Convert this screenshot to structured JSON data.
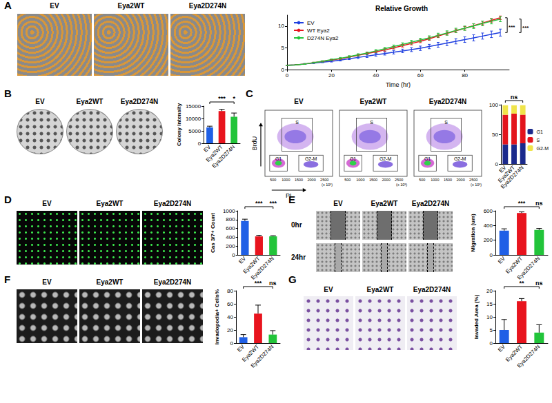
{
  "figure": {
    "image_labels": [
      "EV",
      "Eya2WT",
      "Eya2D274N"
    ],
    "scratch_times": [
      "0hr",
      "24hr"
    ],
    "flow": {
      "x_label": "PI",
      "y_label": "BrdU",
      "gates": [
        "S",
        "G1",
        "G2-M"
      ],
      "x_ticks": [
        "500",
        "1000",
        "1500",
        "2000",
        "2500"
      ],
      "x_unit": "(x 10³)"
    }
  },
  "chart_data": [
    {
      "panel": "A",
      "type": "line",
      "title": "Relative Growth",
      "x_label": "Time (hr)",
      "x": [
        0,
        4,
        8,
        12,
        16,
        20,
        24,
        28,
        32,
        36,
        40,
        44,
        48,
        52,
        56,
        60,
        64,
        68,
        72,
        76,
        80,
        84,
        88,
        92,
        96
      ],
      "xlim": [
        0,
        100
      ],
      "xticks": [
        0,
        20,
        40,
        60,
        80
      ],
      "ylim": [
        0,
        12.5
      ],
      "yticks": [
        0,
        5,
        10
      ],
      "grid": false,
      "legend": "top-left",
      "series": [
        {
          "name": "EV",
          "color": "#1f3fe0",
          "values": [
            1,
            1.1,
            1.3,
            1.5,
            1.7,
            1.9,
            2.2,
            2.5,
            2.8,
            3.1,
            3.4,
            3.7,
            4.0,
            4.3,
            4.6,
            4.9,
            5.3,
            5.7,
            6.1,
            6.5,
            6.9,
            7.3,
            7.7,
            8.1,
            8.5
          ],
          "errors": [
            0,
            0.05,
            0.1,
            0.1,
            0.1,
            0.15,
            0.2,
            0.2,
            0.25,
            0.3,
            0.3,
            0.35,
            0.4,
            0.4,
            0.45,
            0.5,
            0.5,
            0.55,
            0.6,
            0.6,
            0.65,
            0.7,
            0.7,
            0.75,
            0.8
          ]
        },
        {
          "name": "WT Eya2",
          "color": "#e8141e",
          "values": [
            1,
            1.1,
            1.3,
            1.6,
            1.9,
            2.2,
            2.5,
            2.9,
            3.3,
            3.7,
            4.1,
            4.5,
            5.0,
            5.5,
            6.0,
            6.5,
            7.1,
            7.7,
            8.3,
            8.9,
            9.5,
            10.1,
            10.7,
            11.3,
            11.9
          ],
          "errors": [
            0,
            0.05,
            0.05,
            0.1,
            0.1,
            0.1,
            0.15,
            0.15,
            0.2,
            0.2,
            0.2,
            0.25,
            0.25,
            0.3,
            0.3,
            0.3,
            0.35,
            0.35,
            0.35,
            0.4,
            0.4,
            0.4,
            0.4,
            0.4,
            0.4
          ]
        },
        {
          "name": "D274N Eya2",
          "color": "#22c43a",
          "values": [
            1,
            1.1,
            1.3,
            1.6,
            1.9,
            2.3,
            2.6,
            3.0,
            3.4,
            3.8,
            4.3,
            4.8,
            5.3,
            5.8,
            6.3,
            6.8,
            7.3,
            7.9,
            8.4,
            9.0,
            9.5,
            10.0,
            10.6,
            11.1,
            11.6
          ],
          "errors": [
            0,
            0.05,
            0.1,
            0.1,
            0.15,
            0.15,
            0.2,
            0.2,
            0.25,
            0.25,
            0.3,
            0.3,
            0.35,
            0.35,
            0.4,
            0.4,
            0.45,
            0.45,
            0.5,
            0.5,
            0.5,
            0.55,
            0.55,
            0.6,
            0.6
          ]
        }
      ],
      "annotations": [
        "***",
        "***"
      ]
    },
    {
      "panel": "B",
      "type": "bar",
      "y_label": "Colony Intensity",
      "categories": [
        "EV",
        "Eya2WT",
        "Eya2D274N"
      ],
      "values": [
        6400,
        13000,
        10700
      ],
      "errors": [
        500,
        700,
        1500
      ],
      "colors": [
        "#1f5fe6",
        "#e8141e",
        "#22c43a"
      ],
      "ylim": [
        0,
        15000
      ],
      "yticks": [
        0,
        5000,
        10000,
        15000
      ],
      "grid": false,
      "significance": [
        null,
        "***",
        "*"
      ]
    },
    {
      "panel": "C",
      "type": "bar",
      "stacked": true,
      "categories": [
        "EV",
        "Eya2WT",
        "Eya2D274N"
      ],
      "series": [
        {
          "name": "G1",
          "color": "#1b2a8c",
          "values": [
            33,
            33,
            35
          ]
        },
        {
          "name": "S",
          "color": "#e3141c",
          "values": [
            50,
            52,
            48
          ]
        },
        {
          "name": "G2-M",
          "color": "#f0e44a",
          "values": [
            16,
            14,
            16
          ]
        }
      ],
      "ylim": [
        0,
        100
      ],
      "yticks": [
        0,
        50,
        100
      ],
      "grid": false,
      "legend": "right",
      "annotations": [
        "ns"
      ]
    },
    {
      "panel": "D",
      "type": "bar",
      "y_label": "Cas 3/7+ Count",
      "categories": [
        "EV",
        "Eya2WT",
        "Eya2D274N"
      ],
      "values": [
        770,
        420,
        420
      ],
      "errors": [
        40,
        25,
        15
      ],
      "colors": [
        "#1f5fe6",
        "#e8141e",
        "#22c43a"
      ],
      "ylim": [
        0,
        1000
      ],
      "yticks": [
        0,
        200,
        400,
        600,
        800,
        1000
      ],
      "grid": false,
      "significance": [
        null,
        "***",
        "***"
      ]
    },
    {
      "panel": "E",
      "type": "bar",
      "y_label": "Migration (um)",
      "categories": [
        "EV",
        "Eya2WT",
        "Eya2D274N"
      ],
      "values": [
        330,
        570,
        340
      ],
      "errors": [
        25,
        15,
        20
      ],
      "colors": [
        "#1f5fe6",
        "#e8141e",
        "#22c43a"
      ],
      "ylim": [
        0,
        600
      ],
      "yticks": [
        0,
        200,
        400,
        600
      ],
      "grid": false,
      "significance": [
        null,
        "***",
        "ns"
      ]
    },
    {
      "panel": "F",
      "type": "bar",
      "y_label": "Invadopodia+ Cells%",
      "categories": [
        "EV",
        "Eya2WT",
        "Eya2D274N"
      ],
      "values": [
        9,
        45,
        13
      ],
      "errors": [
        4,
        13,
        6
      ],
      "colors": [
        "#1f5fe6",
        "#e8141e",
        "#22c43a"
      ],
      "ylim": [
        0,
        80
      ],
      "yticks": [
        0,
        20,
        40,
        60,
        80
      ],
      "grid": false,
      "significance": [
        null,
        "***",
        "ns"
      ]
    },
    {
      "panel": "G",
      "type": "bar",
      "y_label": "Invaded Area (%)",
      "categories": [
        "EV",
        "Eya2WT",
        "Eya2D274N"
      ],
      "values": [
        5,
        16,
        4
      ],
      "errors": [
        4,
        1,
        3
      ],
      "colors": [
        "#1f5fe6",
        "#e8141e",
        "#22c43a"
      ],
      "ylim": [
        0,
        20
      ],
      "yticks": [
        0,
        5,
        10,
        15,
        20
      ],
      "grid": false,
      "significance": [
        null,
        "**",
        "ns"
      ]
    }
  ]
}
